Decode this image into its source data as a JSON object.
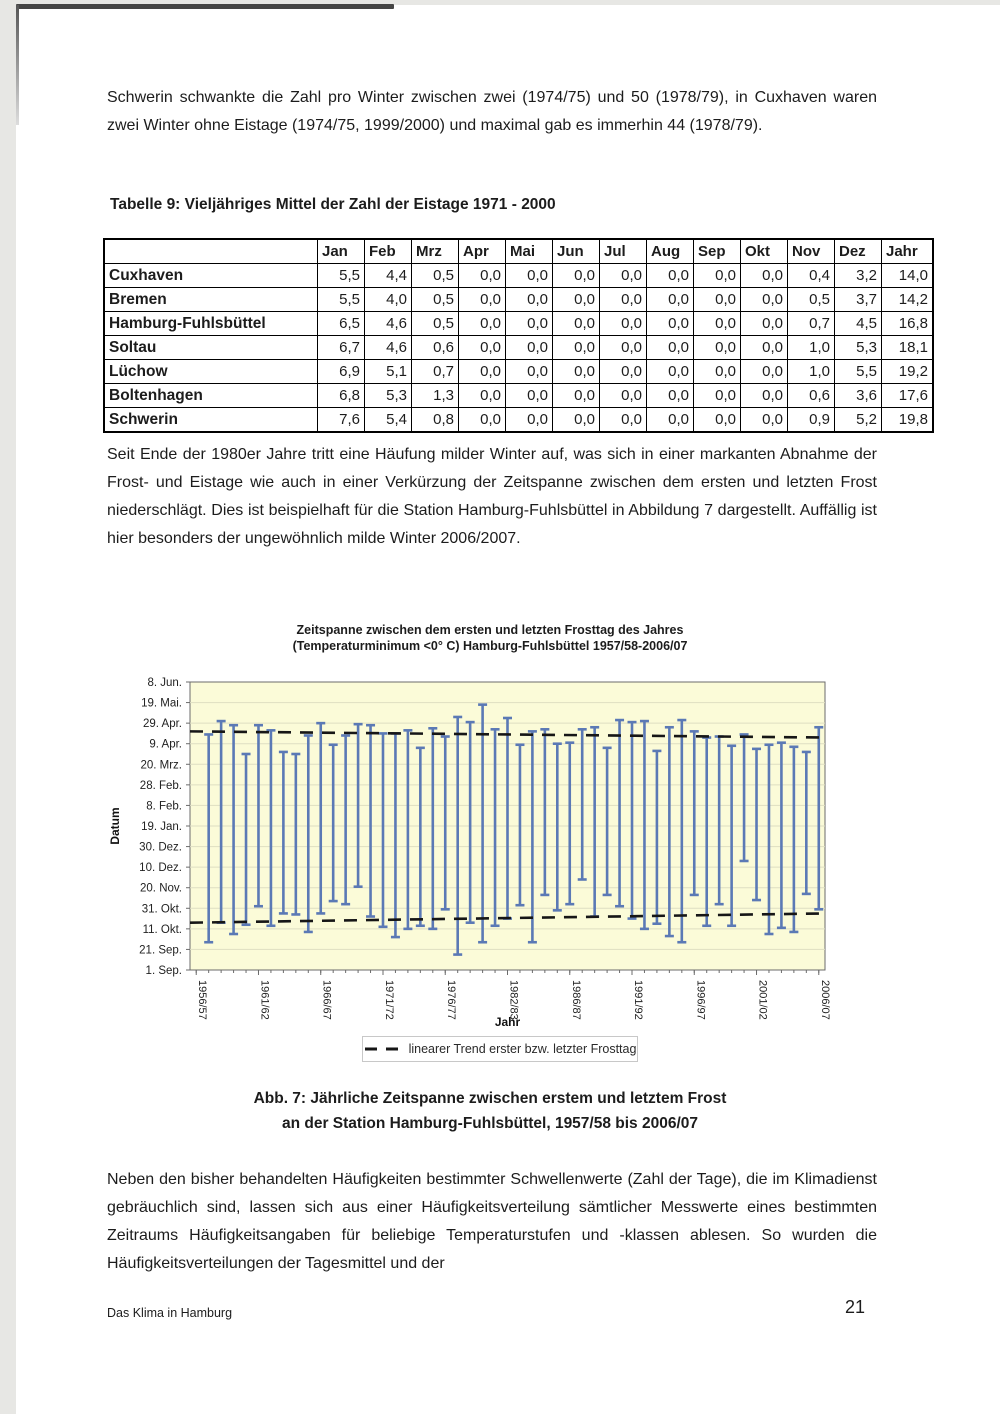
{
  "paragraphs": {
    "p1": "Schwerin schwankte die Zahl pro Winter zwischen zwei (1974/75) und 50 (1978/79), in Cuxhaven waren zwei Winter ohne Eistage (1974/75, 1999/2000) und maximal gab es immerhin 44 (1978/79).",
    "p2": "Seit Ende der 1980er Jahre tritt eine Häufung milder Winter auf, was sich in einer markanten Abnahme der Frost- und Eistage wie auch in einer Verkürzung der Zeitspanne zwischen dem ersten und letzten Frost niederschlägt. Dies ist beispielhaft für die Station Hamburg-Fuhlsbüttel in Abbildung 7 dargestellt. Auffällig ist hier besonders der ungewöhnlich milde Winter 2006/2007.",
    "p3": "Neben den bisher behandelten Häufigkeiten bestimmter Schwellenwerte (Zahl der Tage), die im Klimadienst gebräuchlich sind, lassen sich aus einer Häufigkeitsverteilung sämtlicher Messwerte eines bestimmten Zeitraums Häufigkeitsangaben für beliebige Temperaturstufen und -klassen ablesen. So wurden die Häufigkeitsverteilungen der Tagesmittel und der"
  },
  "table": {
    "title": "Tabelle 9: Vieljähriges Mittel der Zahl der Eistage 1971 - 2000",
    "columns": [
      "",
      "Jan",
      "Feb",
      "Mrz",
      "Apr",
      "Mai",
      "Jun",
      "Jul",
      "Aug",
      "Sep",
      "Okt",
      "Nov",
      "Dez",
      "Jahr"
    ],
    "rows": [
      {
        "station": "Cuxhaven",
        "values": [
          "5,5",
          "4,4",
          "0,5",
          "0,0",
          "0,0",
          "0,0",
          "0,0",
          "0,0",
          "0,0",
          "0,0",
          "0,4",
          "3,2",
          "14,0"
        ]
      },
      {
        "station": "Bremen",
        "values": [
          "5,5",
          "4,0",
          "0,5",
          "0,0",
          "0,0",
          "0,0",
          "0,0",
          "0,0",
          "0,0",
          "0,0",
          "0,5",
          "3,7",
          "14,2"
        ]
      },
      {
        "station": "Hamburg-Fuhlsbüttel",
        "values": [
          "6,5",
          "4,6",
          "0,5",
          "0,0",
          "0,0",
          "0,0",
          "0,0",
          "0,0",
          "0,0",
          "0,0",
          "0,7",
          "4,5",
          "16,8"
        ]
      },
      {
        "station": "Soltau",
        "values": [
          "6,7",
          "4,6",
          "0,6",
          "0,0",
          "0,0",
          "0,0",
          "0,0",
          "0,0",
          "0,0",
          "0,0",
          "1,0",
          "5,3",
          "18,1"
        ]
      },
      {
        "station": "Lüchow",
        "values": [
          "6,9",
          "5,1",
          "0,7",
          "0,0",
          "0,0",
          "0,0",
          "0,0",
          "0,0",
          "0,0",
          "0,0",
          "1,0",
          "5,5",
          "19,2"
        ]
      },
      {
        "station": "Boltenhagen",
        "values": [
          "6,8",
          "5,3",
          "1,3",
          "0,0",
          "0,0",
          "0,0",
          "0,0",
          "0,0",
          "0,0",
          "0,0",
          "0,6",
          "3,6",
          "17,6"
        ]
      },
      {
        "station": "Schwerin",
        "values": [
          "7,6",
          "5,4",
          "0,8",
          "0,0",
          "0,0",
          "0,0",
          "0,0",
          "0,0",
          "0,0",
          "0,0",
          "0,9",
          "5,2",
          "19,8"
        ]
      }
    ]
  },
  "chart_data": {
    "type": "range-bar",
    "title_line1": "Zeitspanne zwischen dem ersten und letzten Frosttag des Jahres",
    "title_line2": "(Temperaturminimum <0° C)  Hamburg-Fuhlsbüttel 1957/58-2006/07",
    "xlabel": "Jahr",
    "ylabel": "Datum",
    "x_tick_labels": [
      "1956/57",
      "1961/62",
      "1966/67",
      "1971/72",
      "1976/77",
      "1982/83",
      "1986/87",
      "1991/92",
      "1996/97",
      "2001/02",
      "2006/07"
    ],
    "y_tick_labels": [
      "8. Jun.",
      "19. Mai.",
      "29. Apr.",
      "9. Apr.",
      "20. Mrz.",
      "28. Feb.",
      "8. Feb.",
      "19. Jan.",
      "30. Dez.",
      "10. Dez.",
      "20. Nov.",
      "31. Okt.",
      "11. Okt.",
      "21. Sep.",
      "1. Sep."
    ],
    "y_unit": "days after 1. Sep",
    "y_range_days": [
      0,
      280
    ],
    "y_tick_step_days": 20,
    "winters": "50 Winter, 1957/58 bis 2006/07",
    "series": [
      {
        "name": "first_frost_day",
        "values": [
          27,
          46,
          35,
          44,
          62,
          43,
          55,
          54,
          37,
          55,
          67,
          64,
          81,
          52,
          42,
          32,
          40,
          43,
          40,
          59,
          15,
          46,
          27,
          43,
          50,
          63,
          27,
          73,
          58,
          64,
          88,
          52,
          73,
          62,
          50,
          40,
          45,
          33,
          27,
          73,
          43,
          64,
          43,
          106,
          68,
          35,
          41,
          37,
          74,
          59
        ]
      },
      {
        "name": "last_frost_day",
        "values": [
          229,
          242,
          238,
          210,
          238,
          233,
          212,
          210,
          228,
          240,
          219,
          228,
          239,
          238,
          230,
          230,
          233,
          216,
          235,
          227,
          246,
          241,
          258,
          234,
          245,
          219,
          232,
          234,
          220,
          221,
          234,
          236,
          216,
          243,
          241,
          242,
          213,
          236,
          243,
          232,
          226,
          227,
          218,
          229,
          215,
          219,
          221,
          217,
          212,
          236
        ]
      }
    ],
    "trend_last_frost_days": [
      232,
      226
    ],
    "trend_first_frost_days": [
      46,
      55
    ],
    "legend_label": "linearer Trend erster bzw. letzter Frosttag",
    "colors": {
      "bar": "#5b79b5",
      "plot_bg": "#fbfbd8",
      "grid": "#dedec2",
      "trend": "#161616",
      "axis": "#6b6b6b",
      "tick_text": "#222222"
    }
  },
  "caption": {
    "line1": "Abb. 7: Jährliche Zeitspanne zwischen erstem und letztem Frost",
    "line2": "an der Station Hamburg-Fuhlsbüttel, 1957/58 bis 2006/07"
  },
  "footer": {
    "doc_title": "Das Klima in Hamburg",
    "page_number": "21"
  }
}
